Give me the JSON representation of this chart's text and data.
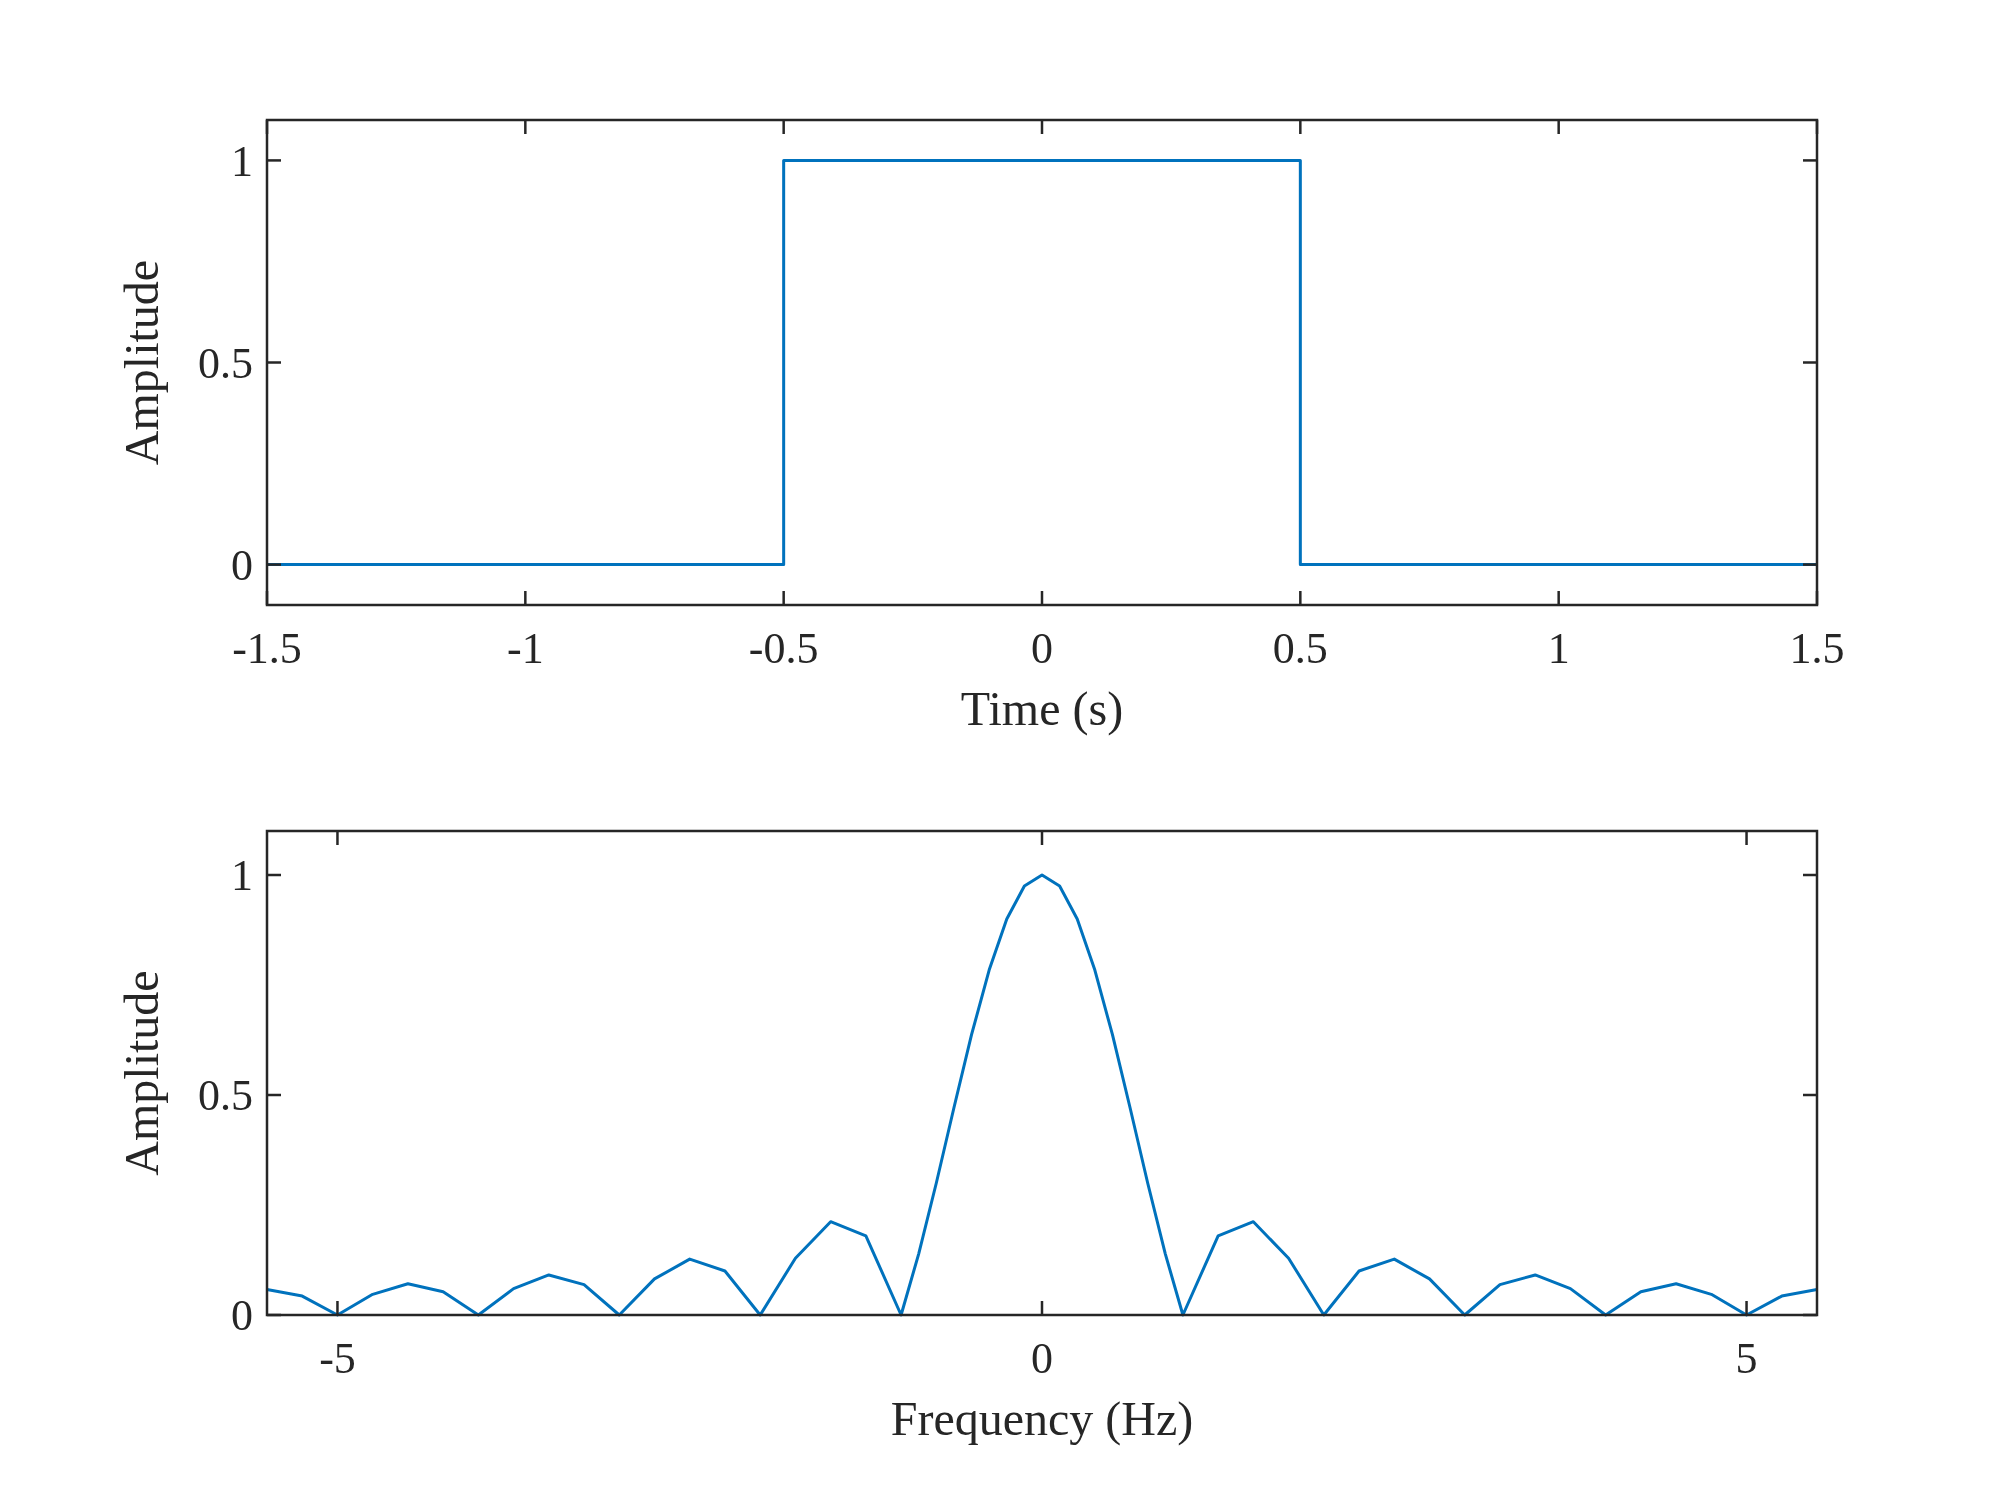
{
  "chart_data": [
    {
      "type": "line",
      "xlabel": "Time (s)",
      "ylabel": "Amplitude",
      "xlim": [
        -1.5,
        1.5
      ],
      "ylim": [
        -0.1,
        1.1
      ],
      "xticks": [
        -1.5,
        -1,
        -0.5,
        0,
        0.5,
        1,
        1.5
      ],
      "yticks": [
        0,
        0.5,
        1
      ],
      "grid": false,
      "series": [
        {
          "color": "#0072bd",
          "x": [
            -1.5,
            -0.5,
            -0.5,
            0.5,
            0.5,
            1.5
          ],
          "values": [
            0,
            0,
            1,
            1,
            0,
            0
          ]
        }
      ]
    },
    {
      "type": "line",
      "xlabel": "Frequency (Hz)",
      "ylabel": "Amplitude",
      "xlim": [
        -5.5,
        5.5
      ],
      "ylim": [
        0,
        1.1
      ],
      "xticks": [
        -5,
        0,
        5
      ],
      "yticks": [
        0,
        0.5,
        1
      ],
      "grid": false,
      "series": [
        {
          "color": "#0072bd",
          "x": [
            -5.5,
            -5.25,
            -5,
            -4.75,
            -4.5,
            -4.25,
            -4,
            -3.75,
            -3.5,
            -3.25,
            -3,
            -2.75,
            -2.5,
            -2.25,
            -2,
            -1.75,
            -1.5,
            -1.25,
            -1,
            -0.875,
            -0.75,
            -0.625,
            -0.5,
            -0.375,
            -0.25,
            -0.125,
            0,
            0.125,
            0.25,
            0.375,
            0.5,
            0.625,
            0.75,
            0.875,
            1,
            1.25,
            1.5,
            1.75,
            2,
            2.25,
            2.5,
            2.75,
            3,
            3.25,
            3.5,
            3.75,
            4,
            4.25,
            4.5,
            4.75,
            5,
            5.25,
            5.5
          ],
          "values": [
            0.058,
            0.043,
            0,
            0.047,
            0.071,
            0.053,
            0,
            0.06,
            0.091,
            0.069,
            0,
            0.082,
            0.127,
            0.1,
            0,
            0.129,
            0.212,
            0.18,
            0,
            0.139,
            0.3,
            0.471,
            0.637,
            0.784,
            0.9,
            0.975,
            1,
            0.975,
            0.9,
            0.784,
            0.637,
            0.471,
            0.3,
            0.139,
            0,
            0.18,
            0.212,
            0.129,
            0,
            0.1,
            0.127,
            0.082,
            0,
            0.069,
            0.091,
            0.06,
            0,
            0.053,
            0.071,
            0.047,
            0,
            0.043,
            0.058
          ]
        }
      ]
    }
  ]
}
